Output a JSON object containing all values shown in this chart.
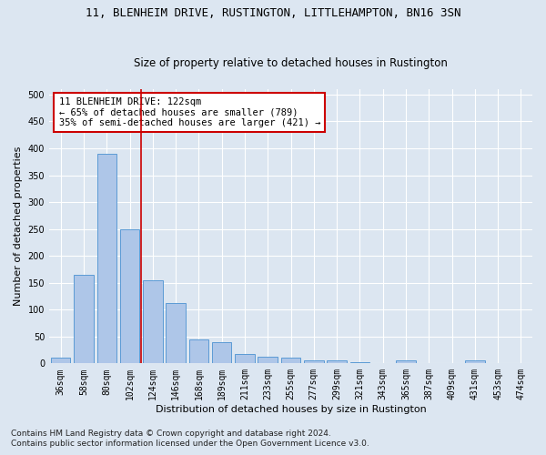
{
  "title1": "11, BLENHEIM DRIVE, RUSTINGTON, LITTLEHAMPTON, BN16 3SN",
  "title2": "Size of property relative to detached houses in Rustington",
  "xlabel": "Distribution of detached houses by size in Rustington",
  "ylabel": "Number of detached properties",
  "footnote1": "Contains HM Land Registry data © Crown copyright and database right 2024.",
  "footnote2": "Contains public sector information licensed under the Open Government Licence v3.0.",
  "bar_labels": [
    "36sqm",
    "58sqm",
    "80sqm",
    "102sqm",
    "124sqm",
    "146sqm",
    "168sqm",
    "189sqm",
    "211sqm",
    "233sqm",
    "255sqm",
    "277sqm",
    "299sqm",
    "321sqm",
    "343sqm",
    "365sqm",
    "387sqm",
    "409sqm",
    "431sqm",
    "453sqm",
    "474sqm"
  ],
  "bar_values": [
    10,
    165,
    390,
    250,
    155,
    113,
    45,
    40,
    17,
    13,
    10,
    6,
    5,
    2,
    0,
    5,
    0,
    0,
    5,
    0,
    0
  ],
  "bar_color": "#aec6e8",
  "bar_edge_color": "#5b9bd5",
  "vline_x": 3.5,
  "vline_color": "#cc0000",
  "annotation_text": "11 BLENHEIM DRIVE: 122sqm\n← 65% of detached houses are smaller (789)\n35% of semi-detached houses are larger (421) →",
  "annotation_box_color": "#ffffff",
  "annotation_box_edge": "#cc0000",
  "ylim": [
    0,
    510
  ],
  "yticks": [
    0,
    50,
    100,
    150,
    200,
    250,
    300,
    350,
    400,
    450,
    500
  ],
  "bg_color": "#dce6f1",
  "grid_color": "#ffffff",
  "title1_fontsize": 9,
  "title2_fontsize": 8.5,
  "axis_label_fontsize": 8,
  "tick_fontsize": 7,
  "annotation_fontsize": 7.5,
  "footnote_fontsize": 6.5
}
